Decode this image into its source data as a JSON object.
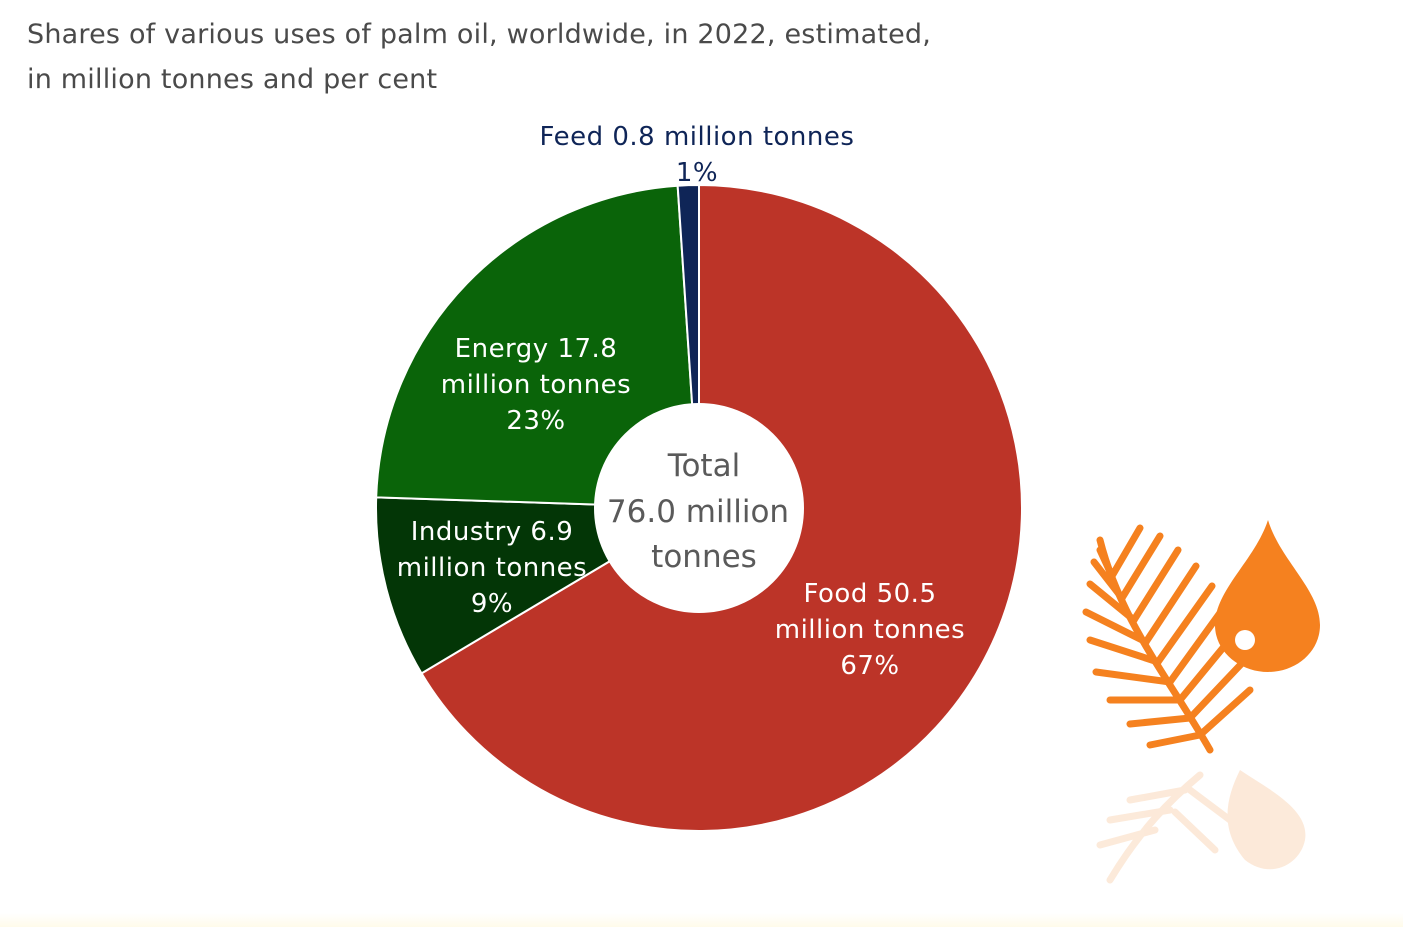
{
  "title_line1": "Shares of various uses of palm oil, worldwide, in 2022, estimated,",
  "title_line2": "in million tonnes and per cent",
  "center_label": [
    "Total",
    "76.0 million",
    "tonnes"
  ],
  "colors": {
    "Food": "#bc3428",
    "Feed": "#0f2557",
    "Energy": "#0a6409",
    "Industry": "#033606",
    "icon": "#f5811f"
  },
  "chart_data": {
    "type": "pie",
    "donut": true,
    "total": 76.0,
    "unit": "million tonnes",
    "slices": [
      {
        "name": "Food",
        "value": 50.5,
        "percent": 67,
        "label": [
          "Food 50.5",
          "million tonnes",
          "67%"
        ]
      },
      {
        "name": "Industry",
        "value": 6.9,
        "percent": 9,
        "label": [
          "Industry 6.9",
          "million tonnes",
          "9%"
        ]
      },
      {
        "name": "Energy",
        "value": 17.8,
        "percent": 23,
        "label": [
          "Energy 17.8",
          "million tonnes",
          "23%"
        ]
      },
      {
        "name": "Feed",
        "value": 0.8,
        "percent": 1,
        "label": [
          "Feed 0.8 million tonnes",
          "1%"
        ]
      }
    ]
  },
  "icons": [
    "palm-leaf-icon",
    "oil-drop-icon"
  ]
}
